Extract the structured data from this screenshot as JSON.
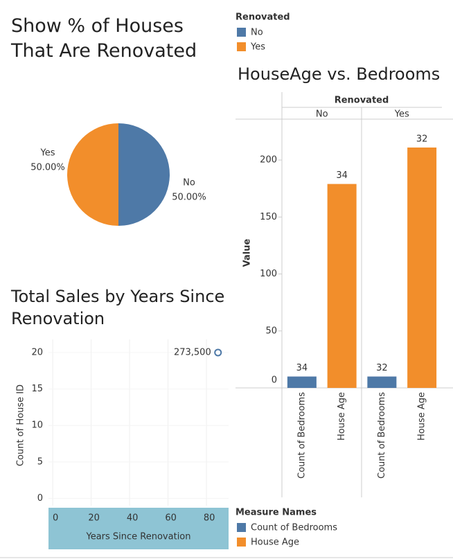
{
  "chart_data": [
    {
      "type": "pie",
      "title": "Show % of Houses That Are Renovated",
      "legend_title": "Renovated",
      "categories": [
        "No",
        "Yes"
      ],
      "values": [
        50,
        50
      ],
      "value_labels": [
        "50.00%",
        "50.00%"
      ],
      "colors": [
        "#4e79a7",
        "#f28e2b"
      ]
    },
    {
      "type": "bar",
      "title": "HouseAge vs. Bedrooms",
      "facet_title": "Renovated",
      "facets": [
        "No",
        "Yes"
      ],
      "y_label": "Value",
      "legend_title": "Measure Names",
      "ylim": [
        0,
        228
      ],
      "yticks": [
        0,
        50,
        100,
        150,
        200
      ],
      "series": [
        {
          "name": "Count of Bedrooms",
          "color": "#4e79a7",
          "values": [
            10,
            10
          ],
          "labels": [
            34,
            32
          ]
        },
        {
          "name": "House Age",
          "color": "#f28e2b",
          "values": [
            179,
            211
          ],
          "labels": [
            34,
            32
          ]
        }
      ]
    },
    {
      "type": "scatter",
      "title": "Total Sales by Years Since Renovation",
      "x_label": "Years Since Renovation",
      "y_label": "Count of House ID",
      "x": [
        86
      ],
      "y": [
        20
      ],
      "point_labels": [
        "273,500"
      ],
      "color": "#4e79a7",
      "xlim": [
        -2.2,
        91.5
      ],
      "ylim": [
        -1,
        21.8
      ],
      "xticks": [
        0,
        20,
        40,
        60,
        80
      ],
      "yticks": [
        0,
        5,
        10,
        15,
        20
      ],
      "grid": true
    }
  ]
}
